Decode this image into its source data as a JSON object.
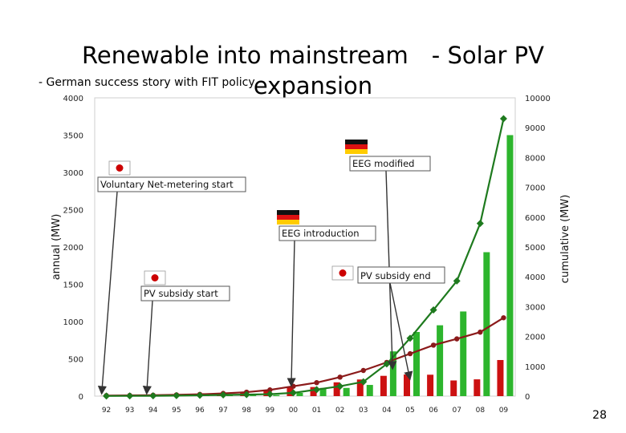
{
  "slide": {
    "title": "Renewable into mainstream　- Solar PV",
    "title_line2": "expansion",
    "subtitle": "- German success story with FIT policy",
    "page_number": "28"
  },
  "colors": {
    "annual_bar": "#cc1111",
    "cumulative_bar": "#2db52d",
    "japan_line": "#8b1a1a",
    "germany_line": "#1e7a1e",
    "japan_flag_red": "#cc0000"
  },
  "chart_data": {
    "type": "bar",
    "categories": [
      "92",
      "93",
      "94",
      "95",
      "96",
      "97",
      "98",
      "99",
      "00",
      "01",
      "02",
      "03",
      "04",
      "05",
      "06",
      "07",
      "08",
      "09"
    ],
    "series": [
      {
        "kind": "bar",
        "axis": "left",
        "color": "#cc1111",
        "values": [
          2,
          5,
          8,
          18,
          22,
          35,
          45,
          70,
          120,
          122,
          185,
          223,
          272,
          290,
          287,
          210,
          225,
          484
        ]
      },
      {
        "kind": "bar",
        "axis": "left",
        "color": "#2db52d",
        "values": [
          3,
          3,
          3,
          5,
          10,
          15,
          10,
          15,
          44,
          110,
          110,
          150,
          600,
          860,
          950,
          1135,
          1930,
          3500
        ]
      },
      {
        "kind": "line",
        "axis": "right",
        "color": "#8b1a1a",
        "marker": "circle",
        "values": [
          19,
          24,
          31,
          43,
          60,
          91,
          133,
          209,
          330,
          452,
          637,
          860,
          1132,
          1422,
          1709,
          1919,
          2144,
          2627
        ]
      },
      {
        "kind": "line",
        "axis": "right",
        "color": "#1e7a1e",
        "marker": "diamond",
        "values": [
          5,
          8,
          11,
          16,
          26,
          41,
          51,
          66,
          110,
          220,
          330,
          480,
          1080,
          1940,
          2890,
          3860,
          5790,
          9300
        ]
      }
    ],
    "ylabel": "annual (MW)",
    "y2label": "cumulative (MW)",
    "ylim": [
      0,
      4000
    ],
    "y2lim": [
      0,
      10000
    ],
    "yticks": [
      "0",
      "500",
      "1000",
      "1500",
      "2000",
      "2500",
      "3000",
      "3500",
      "4000"
    ],
    "y2ticks": [
      "0",
      "1000",
      "2000",
      "3000",
      "4000",
      "5000",
      "6000",
      "7000",
      "8000",
      "9000",
      "10000"
    ],
    "annotations": [
      {
        "text": "Voluntary Net-metering start",
        "flag": "japan",
        "target": "92"
      },
      {
        "text": "PV subsidy start",
        "flag": "japan",
        "target": "94"
      },
      {
        "text": "EEG introduction",
        "flag": "germany",
        "target": "00"
      },
      {
        "text": "EEG modified",
        "flag": "germany",
        "target": "04"
      },
      {
        "text": "PV subsidy end",
        "flag": "japan",
        "target": "05"
      }
    ]
  }
}
